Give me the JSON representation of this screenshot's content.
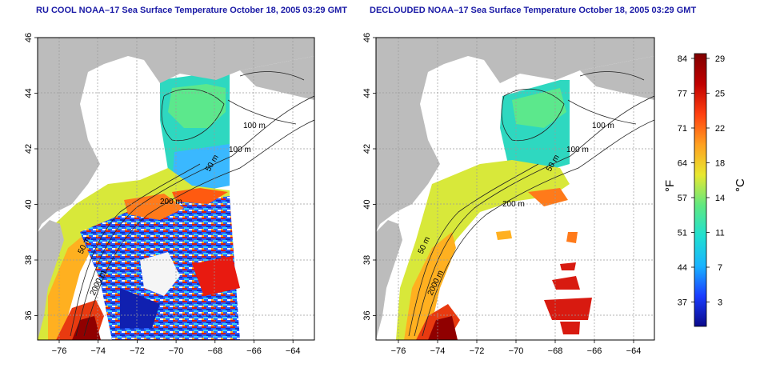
{
  "panels": [
    {
      "title": "RU COOL NOAA–17 Sea Surface Temperature October 18, 2005 03:29 GMT",
      "contour_labels": [
        "100 m",
        "100 m",
        "50 m",
        "200 m",
        "50 m",
        "2000 m"
      ]
    },
    {
      "title": "DECLOUDED NOAA–17 Sea Surface Temperature October 18, 2005 03:29 GMT",
      "contour_labels": [
        "100 m",
        "100 m",
        "50 m",
        "200 m",
        "50 m",
        "2000 m"
      ]
    }
  ],
  "axes": {
    "x_ticks": [
      "−76",
      "−74",
      "−72",
      "−70",
      "−68",
      "−66",
      "−64"
    ],
    "y_ticks": [
      "46",
      "44",
      "42",
      "40",
      "38",
      "36"
    ]
  },
  "colorbar": {
    "fahrenheit_ticks": [
      "84",
      "77",
      "71",
      "64",
      "57",
      "51",
      "44",
      "37"
    ],
    "celsius_ticks": [
      "29",
      "25",
      "22",
      "18",
      "14",
      "11",
      "7",
      "3"
    ],
    "fahrenheit_label": "°F",
    "celsius_label": "°C",
    "stops": [
      "#0a0a8a",
      "#1a3cff",
      "#19b4ff",
      "#20e0d0",
      "#60e880",
      "#e8e830",
      "#ffa020",
      "#ff4010",
      "#c00000",
      "#800000"
    ]
  },
  "colors": {
    "land": "#bcbcbc",
    "title": "#1a1aa6",
    "grid": "#9a9a9a"
  }
}
